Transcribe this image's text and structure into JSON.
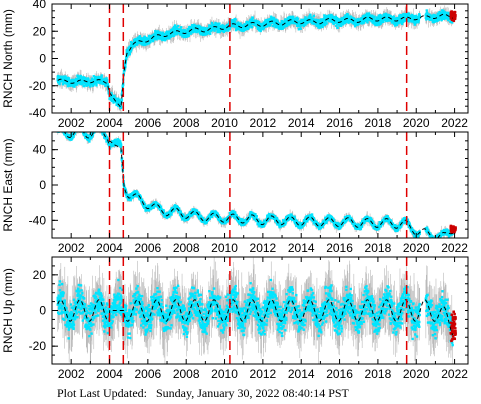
{
  "footer": {
    "label": "Plot Last Updated:",
    "timestamp": "Sunday, January 30, 2022 08:40:14 PST"
  },
  "colors": {
    "data_points": "#00e5ff",
    "error_bars": "#a8a8a8",
    "model_line": "#000000",
    "event_lines": "#e00000",
    "recent_points": "#cc0000"
  },
  "chart_data": [
    {
      "type": "scatter",
      "ylabel": "RNCH North (mm)",
      "xlim": [
        2001.0,
        2022.7
      ],
      "ylim": [
        -40,
        40
      ],
      "x_ticks": [
        2002,
        2004,
        2006,
        2008,
        2010,
        2012,
        2014,
        2016,
        2018,
        2020,
        2022
      ],
      "y_ticks": [
        -40,
        -20,
        0,
        20,
        40
      ],
      "event_lines_x": [
        2004.0,
        2004.72,
        2010.28,
        2019.5
      ],
      "model_line": "dashed",
      "series": {
        "x": [
          2001.3,
          2001.8,
          2002.3,
          2002.8,
          2003.3,
          2003.9,
          2004.0,
          2004.3,
          2004.6,
          2004.75,
          2004.9,
          2005.2,
          2005.6,
          2006.0,
          2006.5,
          2007.0,
          2007.5,
          2008.0,
          2008.5,
          2009.0,
          2009.5,
          2010.0,
          2010.3,
          2010.8,
          2011.5,
          2012.0,
          2012.5,
          2013.0,
          2013.5,
          2014.0,
          2014.5,
          2015.0,
          2015.5,
          2016.0,
          2016.5,
          2017.0,
          2017.5,
          2018.0,
          2018.5,
          2019.0,
          2019.5,
          2020.0,
          2020.5,
          2021.0,
          2021.5,
          2021.9
        ],
        "y": [
          -17,
          -16,
          -18,
          -16,
          -17,
          -17,
          -25,
          -31,
          -36,
          -10,
          5,
          10,
          12,
          14,
          16,
          18,
          19,
          20,
          21,
          21,
          22,
          23,
          24,
          24,
          25,
          25,
          26,
          26,
          27,
          27,
          27,
          27,
          28,
          28,
          28,
          28,
          29,
          29,
          29,
          29,
          29,
          30,
          30,
          31,
          31,
          31
        ]
      }
    },
    {
      "type": "scatter",
      "ylabel": "RNCH East (mm)",
      "xlim": [
        2001.0,
        2022.7
      ],
      "ylim": [
        -60,
        60
      ],
      "x_ticks": [
        2002,
        2004,
        2006,
        2008,
        2010,
        2012,
        2014,
        2016,
        2018,
        2020,
        2022
      ],
      "y_ticks": [
        -40,
        0,
        40
      ],
      "event_lines_x": [
        2004.0,
        2004.72,
        2010.28,
        2019.5
      ],
      "model_line": "dashed",
      "series": {
        "x": [
          2001.3,
          2001.8,
          2002.3,
          2002.8,
          2003.3,
          2003.9,
          2004.0,
          2004.3,
          2004.6,
          2004.75,
          2005.0,
          2005.5,
          2006.0,
          2006.5,
          2007.0,
          2007.5,
          2008.0,
          2008.5,
          2009.0,
          2009.5,
          2010.0,
          2010.5,
          2011.0,
          2011.5,
          2012.0,
          2012.5,
          2013.0,
          2013.5,
          2014.0,
          2014.5,
          2015.0,
          2015.5,
          2016.0,
          2016.5,
          2017.0,
          2017.5,
          2018.0,
          2018.5,
          2019.0,
          2019.5,
          2020.0,
          2020.5,
          2021.0,
          2021.5,
          2021.9
        ],
        "y": [
          60,
          58,
          61,
          57,
          62,
          56,
          50,
          45,
          42,
          0,
          -10,
          -16,
          -22,
          -27,
          -30,
          -31,
          -33,
          -35,
          -36,
          -37,
          -37,
          -38,
          -38,
          -39,
          -40,
          -40,
          -40,
          -41,
          -41,
          -41,
          -42,
          -42,
          -42,
          -42,
          -43,
          -43,
          -43,
          -43,
          -44,
          -45,
          -52,
          -55,
          -57,
          -59,
          -50
        ]
      }
    },
    {
      "type": "scatter",
      "ylabel": "RNCH Up (mm)",
      "xlim": [
        2001.0,
        2022.7
      ],
      "ylim": [
        -30,
        30
      ],
      "x_ticks": [
        2002,
        2004,
        2006,
        2008,
        2010,
        2012,
        2014,
        2016,
        2018,
        2020,
        2022
      ],
      "y_ticks": [
        -20,
        0,
        20
      ],
      "event_lines_x": [
        2004.0,
        2004.72,
        2010.28,
        2019.5
      ],
      "model_line": "dashed",
      "seasonal_amplitude_mm": 6,
      "series": {
        "x": [
          2001.3,
          2002.0,
          2003.0,
          2004.0,
          2005.0,
          2006.0,
          2007.0,
          2008.0,
          2009.0,
          2010.0,
          2011.0,
          2012.0,
          2013.0,
          2014.0,
          2015.0,
          2016.0,
          2017.0,
          2018.0,
          2019.0,
          2020.0,
          2021.0,
          2021.9
        ],
        "y": [
          0,
          0,
          0,
          0,
          0,
          0,
          0,
          0,
          0,
          0,
          0,
          0,
          0,
          0,
          0,
          0,
          0,
          0,
          0,
          0,
          0,
          -8
        ]
      }
    }
  ]
}
